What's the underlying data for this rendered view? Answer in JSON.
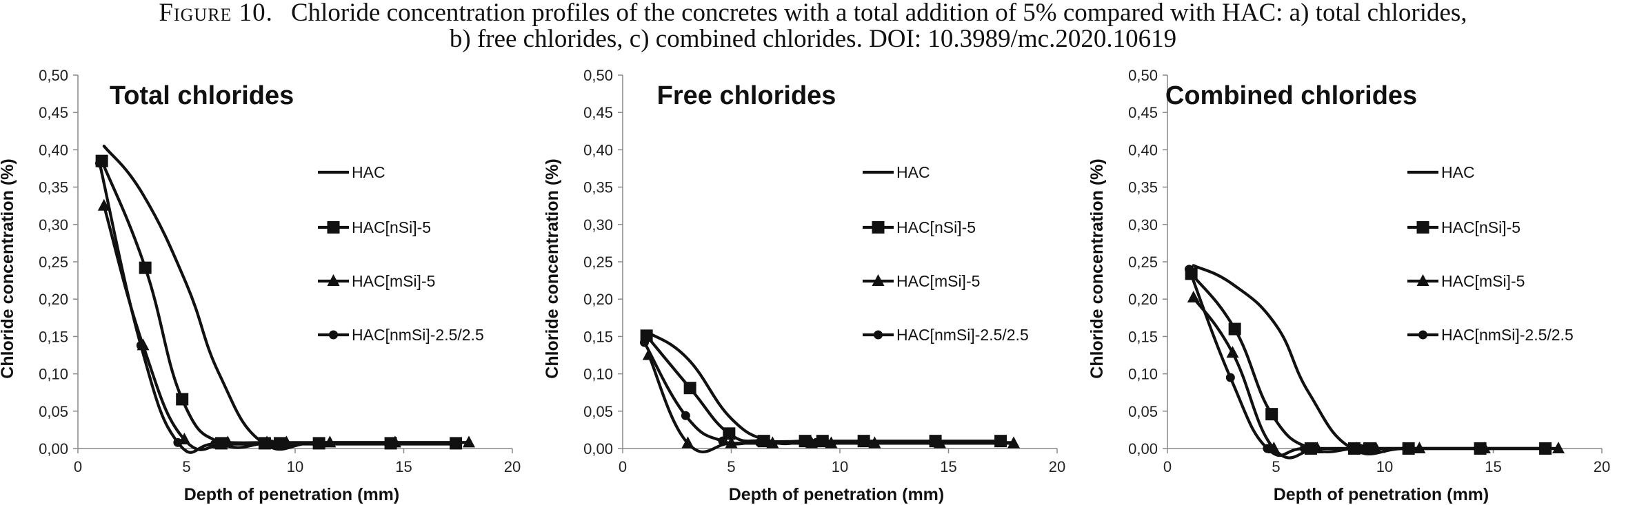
{
  "caption": {
    "label": "Figure 10.",
    "line1": "Chloride concentration profiles of the concretes with a total addition of 5% compared with HAC: a) total chlorides,",
    "line2": "b) free chlorides, c) combined chlorides. DOI: 10.3989/mc.2020.10619"
  },
  "chart_data": [
    {
      "type": "line",
      "title": "Total chlorides",
      "xlabel": "Depth of penetration (mm)",
      "ylabel": "Chloride  concentration  (%)",
      "xlim": [
        0,
        20
      ],
      "ylim": [
        0,
        0.5
      ],
      "xticks": [
        "0",
        "5",
        "10",
        "15",
        "20"
      ],
      "yticks": [
        "0,00",
        "0,05",
        "0,10",
        "0,15",
        "0,20",
        "0,25",
        "0,30",
        "0,35",
        "0,40",
        "0,45",
        "0,50"
      ],
      "legend": "right",
      "series": [
        {
          "name": "HAC",
          "marker": "none",
          "points": [
            [
              1.2,
              0.405
            ],
            [
              3,
              0.34
            ],
            [
              5,
              0.22
            ],
            [
              6.5,
              0.1
            ],
            [
              8.5,
              0.008
            ],
            [
              11,
              0.008
            ],
            [
              14.5,
              0.008
            ],
            [
              18,
              0.008
            ]
          ]
        },
        {
          "name": "HAC[nSi]-5",
          "marker": "square",
          "points": [
            [
              1.1,
              0.385
            ],
            [
              3.1,
              0.242
            ],
            [
              4.8,
              0.066
            ],
            [
              6.6,
              0.007
            ],
            [
              8.6,
              0.007
            ],
            [
              9.3,
              0.007
            ],
            [
              11.1,
              0.007
            ],
            [
              14.4,
              0.007
            ],
            [
              17.4,
              0.007
            ]
          ]
        },
        {
          "name": "HAC[mSi]-5",
          "marker": "triangle",
          "points": [
            [
              1.2,
              0.325
            ],
            [
              3,
              0.138
            ],
            [
              4.9,
              0.012
            ],
            [
              6.9,
              0.008
            ],
            [
              8.7,
              0.008
            ],
            [
              9.6,
              0.008
            ],
            [
              11.6,
              0.008
            ],
            [
              14.6,
              0.008
            ],
            [
              18,
              0.008
            ]
          ]
        },
        {
          "name": "HAC[nmSi]-2.5/2.5",
          "marker": "circle",
          "points": [
            [
              1,
              0.382
            ],
            [
              2.9,
              0.138
            ],
            [
              4.6,
              0.008
            ],
            [
              6.3,
              0.006
            ],
            [
              8.9,
              0.006
            ],
            [
              11,
              0.006
            ],
            [
              14.3,
              0.006
            ],
            [
              17.3,
              0.006
            ]
          ]
        }
      ]
    },
    {
      "type": "line",
      "title": "Free chlorides",
      "xlabel": "Depth of penetration (mm)",
      "ylabel": "Chloride  concentration  (%)",
      "xlim": [
        0,
        20
      ],
      "ylim": [
        0,
        0.5
      ],
      "xticks": [
        "0",
        "5",
        "10",
        "15",
        "20"
      ],
      "yticks": [
        "0,00",
        "0,05",
        "0,10",
        "0,15",
        "0,20",
        "0,25",
        "0,30",
        "0,35",
        "0,40",
        "0,45",
        "0,50"
      ],
      "legend": "right",
      "series": [
        {
          "name": "HAC",
          "marker": "none",
          "points": [
            [
              1.2,
              0.155
            ],
            [
              3,
              0.12
            ],
            [
              5,
              0.04
            ],
            [
              6.8,
              0.01
            ],
            [
              8.5,
              0.008
            ],
            [
              11,
              0.008
            ],
            [
              14.5,
              0.008
            ],
            [
              18,
              0.008
            ]
          ]
        },
        {
          "name": "HAC[nSi]-5",
          "marker": "square",
          "points": [
            [
              1.1,
              0.151
            ],
            [
              3.1,
              0.081
            ],
            [
              4.9,
              0.02
            ],
            [
              6.5,
              0.01
            ],
            [
              8.4,
              0.01
            ],
            [
              9.2,
              0.01
            ],
            [
              11.1,
              0.01
            ],
            [
              14.4,
              0.01
            ],
            [
              17.4,
              0.01
            ]
          ]
        },
        {
          "name": "HAC[mSi]-5",
          "marker": "triangle",
          "points": [
            [
              1.2,
              0.125
            ],
            [
              3,
              0.007
            ],
            [
              5,
              0.007
            ],
            [
              6.9,
              0.007
            ],
            [
              8.7,
              0.007
            ],
            [
              9.6,
              0.007
            ],
            [
              11.6,
              0.007
            ],
            [
              14.6,
              0.007
            ],
            [
              18,
              0.007
            ]
          ]
        },
        {
          "name": "HAC[nmSi]-2.5/2.5",
          "marker": "circle",
          "points": [
            [
              1,
              0.142
            ],
            [
              2.9,
              0.044
            ],
            [
              4.6,
              0.01
            ],
            [
              6.3,
              0.008
            ],
            [
              8.9,
              0.008
            ],
            [
              11,
              0.008
            ],
            [
              14.3,
              0.008
            ],
            [
              17.3,
              0.008
            ]
          ]
        }
      ]
    },
    {
      "type": "line",
      "title": "Combined chlorides",
      "xlabel": "Depth of penetration (mm)",
      "ylabel": "Chloride  concentration  (%)",
      "xlim": [
        0,
        20
      ],
      "ylim": [
        0,
        0.5
      ],
      "xticks": [
        "0",
        "5",
        "10",
        "15",
        "20"
      ],
      "yticks": [
        "0,00",
        "0,05",
        "0,10",
        "0,15",
        "0,20",
        "0,25",
        "0,30",
        "0,35",
        "0,40",
        "0,45",
        "0,50"
      ],
      "legend": "right",
      "series": [
        {
          "name": "HAC",
          "marker": "none",
          "points": [
            [
              1.2,
              0.245
            ],
            [
              3,
              0.22
            ],
            [
              5,
              0.165
            ],
            [
              6.5,
              0.075
            ],
            [
              8.5,
              0.0
            ],
            [
              11,
              0.0
            ],
            [
              14.5,
              0.0
            ],
            [
              18,
              0.0
            ]
          ]
        },
        {
          "name": "HAC[nSi]-5",
          "marker": "square",
          "points": [
            [
              1.1,
              0.234
            ],
            [
              3.1,
              0.16
            ],
            [
              4.8,
              0.046
            ],
            [
              6.6,
              0.0
            ],
            [
              8.6,
              0.0
            ],
            [
              9.3,
              0.0
            ],
            [
              11.1,
              0.0
            ],
            [
              14.4,
              0.0
            ],
            [
              17.4,
              0.0
            ]
          ]
        },
        {
          "name": "HAC[mSi]-5",
          "marker": "triangle",
          "points": [
            [
              1.2,
              0.202
            ],
            [
              3,
              0.128
            ],
            [
              4.9,
              0.0
            ],
            [
              6.9,
              0.0
            ],
            [
              8.7,
              0.0
            ],
            [
              9.6,
              0.0
            ],
            [
              11.6,
              0.0
            ],
            [
              14.6,
              0.0
            ],
            [
              18,
              0.0
            ]
          ]
        },
        {
          "name": "HAC[nmSi]-2.5/2.5",
          "marker": "circle",
          "points": [
            [
              1,
              0.24
            ],
            [
              2.9,
              0.095
            ],
            [
              4.6,
              0.0
            ],
            [
              6.3,
              0.0
            ],
            [
              8.9,
              0.0
            ],
            [
              11,
              0.0
            ],
            [
              14.3,
              0.0
            ],
            [
              17.3,
              0.0
            ]
          ]
        }
      ]
    }
  ]
}
